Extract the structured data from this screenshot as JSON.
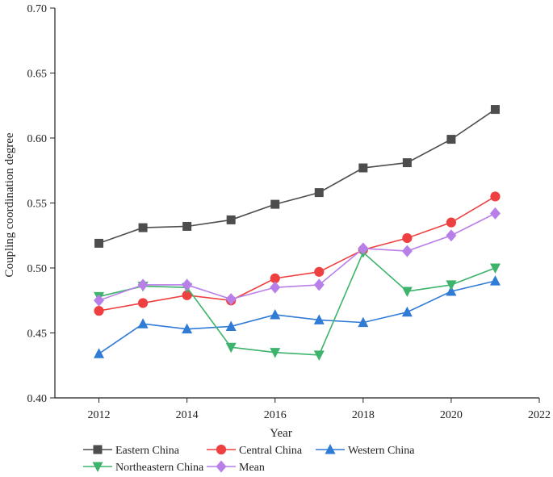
{
  "chart_data": {
    "type": "line",
    "title": "",
    "xlabel": "Year",
    "ylabel": "Coupling coordination degree",
    "xlim": [
      2011,
      2022
    ],
    "ylim": [
      0.4,
      0.7
    ],
    "xticks": [
      2012,
      2014,
      2016,
      2018,
      2020,
      2022
    ],
    "yticks": [
      0.4,
      0.45,
      0.5,
      0.55,
      0.6,
      0.65,
      0.7
    ],
    "xtick_labels": [
      "2012",
      "2014",
      "2016",
      "2018",
      "2020",
      "2022"
    ],
    "ytick_labels": [
      "0.40",
      "0.45",
      "0.50",
      "0.55",
      "0.60",
      "0.65",
      "0.70"
    ],
    "x": [
      2012,
      2013,
      2014,
      2015,
      2016,
      2017,
      2018,
      2019,
      2020,
      2021
    ],
    "grid": false,
    "legend_position": "bottom",
    "series": [
      {
        "name": "Eastern China",
        "color": "#4d4d4d",
        "marker": "square",
        "values": [
          0.519,
          0.531,
          0.532,
          0.537,
          0.549,
          0.558,
          0.577,
          0.581,
          0.599,
          0.622
        ]
      },
      {
        "name": "Central China",
        "color": "#ee4040",
        "marker": "circle",
        "values": [
          0.467,
          0.473,
          0.479,
          0.475,
          0.492,
          0.497,
          0.514,
          0.523,
          0.535,
          0.555
        ]
      },
      {
        "name": "Western China",
        "color": "#2f7bd6",
        "marker": "triangle-up",
        "values": [
          0.434,
          0.457,
          0.453,
          0.455,
          0.464,
          0.46,
          0.458,
          0.466,
          0.482,
          0.49
        ]
      },
      {
        "name": "Northeastern China",
        "color": "#3db36b",
        "marker": "triangle-down",
        "values": [
          0.478,
          0.486,
          0.485,
          0.439,
          0.435,
          0.433,
          0.512,
          0.482,
          0.487,
          0.5
        ]
      },
      {
        "name": "Mean",
        "color": "#b87fe8",
        "marker": "diamond",
        "values": [
          0.475,
          0.487,
          0.487,
          0.476,
          0.485,
          0.487,
          0.515,
          0.513,
          0.525,
          0.542
        ]
      }
    ]
  }
}
